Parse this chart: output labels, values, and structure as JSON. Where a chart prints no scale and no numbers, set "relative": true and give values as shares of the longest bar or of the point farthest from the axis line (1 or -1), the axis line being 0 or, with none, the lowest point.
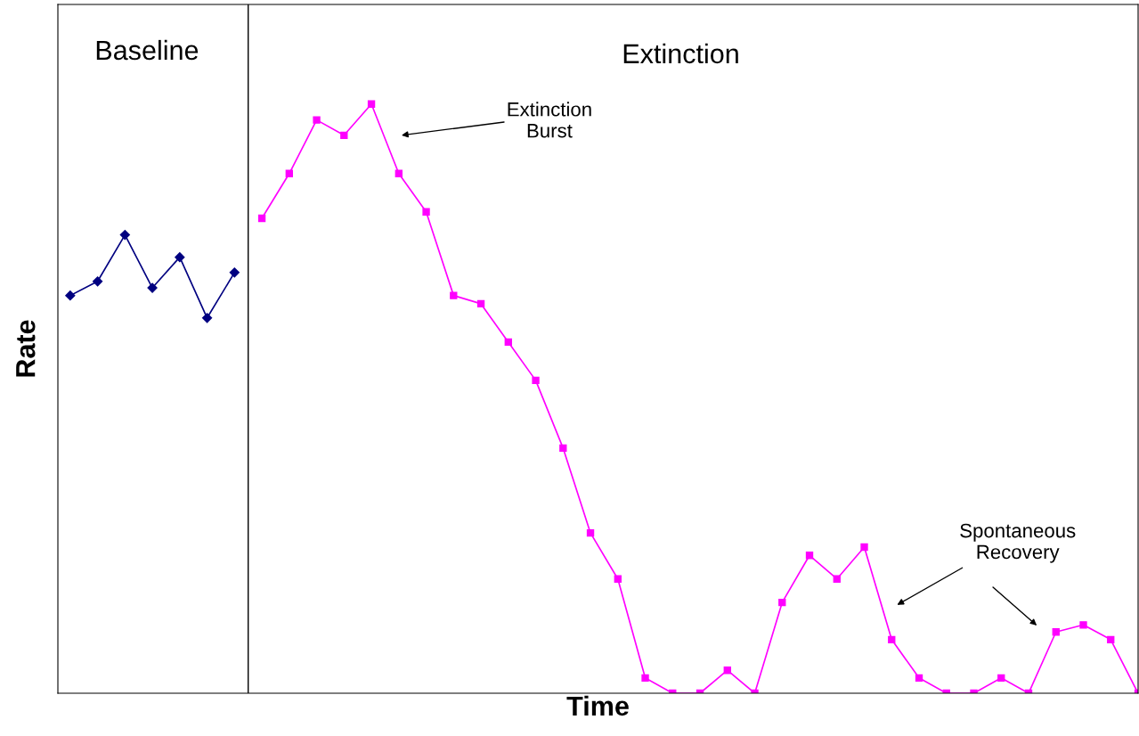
{
  "chart_data": {
    "type": "line",
    "relative": true,
    "xlabel": "Time",
    "ylabel": "Rate",
    "categories": [
      null,
      null,
      null,
      null,
      null,
      null,
      null,
      null,
      null,
      null,
      null,
      null,
      null,
      null,
      null,
      null,
      null,
      null,
      null,
      null,
      null,
      null,
      null,
      null,
      null,
      null,
      null,
      null,
      null,
      null,
      null,
      null,
      null,
      null,
      null,
      null,
      null,
      null,
      null,
      null
    ],
    "series": [
      {
        "color": "#000080",
        "marker": "diamond",
        "values": [
          0.675,
          0.699,
          0.778,
          0.688,
          0.74,
          0.637,
          0.714,
          null,
          null,
          null,
          null,
          null,
          null,
          null,
          null,
          null,
          null,
          null,
          null,
          null,
          null,
          null,
          null,
          null,
          null,
          null,
          null,
          null,
          null,
          null,
          null,
          null,
          null,
          null,
          null,
          null,
          null,
          null,
          null,
          null
        ]
      },
      {
        "color": "#ff00ff",
        "marker": "square",
        "values": [
          null,
          null,
          null,
          null,
          null,
          null,
          null,
          0.806,
          0.882,
          0.973,
          0.947,
          1.0,
          0.882,
          0.817,
          0.675,
          0.661,
          0.596,
          0.531,
          0.416,
          0.272,
          0.194,
          0.026,
          0,
          0,
          0.039,
          0,
          0.154,
          0.234,
          0.194,
          0.248,
          0.091,
          0.026,
          0,
          0,
          0.026,
          0,
          0.104,
          0.116,
          0.091,
          0
        ]
      }
    ],
    "annotations": [
      "Baseline",
      "Extinction",
      "Extinction\nBurst",
      "Spontaneous\nRecovery"
    ],
    "legend": false
  }
}
